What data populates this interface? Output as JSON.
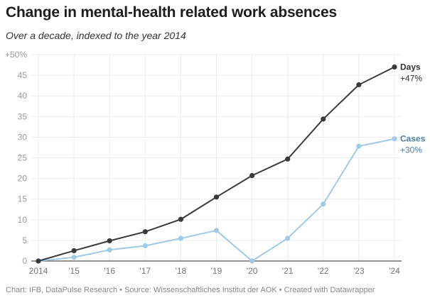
{
  "title": "Change in mental-health related work absences",
  "subtitle": "Over a decade, indexed to the year 2014",
  "footer": "Chart: IFB, DataPulse Research • Source: Wissenschaftliches Institut der AOK • Created with Datawrapper",
  "chart_data": {
    "type": "line",
    "title": "Change in mental-health related work absences",
    "subtitle": "Over a decade, indexed to the year 2014",
    "xlabel": "",
    "ylabel": "",
    "categories": [
      "2014",
      "'15",
      "'16",
      "'17",
      "'18",
      "'19",
      "'20",
      "'21",
      "'22",
      "'23",
      "'24"
    ],
    "yticks": [
      {
        "value": 0,
        "label": "0"
      },
      {
        "value": 5,
        "label": "5"
      },
      {
        "value": 10,
        "label": "10"
      },
      {
        "value": 15,
        "label": "15"
      },
      {
        "value": 20,
        "label": "20"
      },
      {
        "value": 25,
        "label": "25"
      },
      {
        "value": 30,
        "label": "30"
      },
      {
        "value": 35,
        "label": "35"
      },
      {
        "value": 40,
        "label": "40"
      },
      {
        "value": 45,
        "label": "45"
      },
      {
        "value": 50,
        "label": "+50%"
      }
    ],
    "ylim": [
      0,
      50
    ],
    "grid": true,
    "series": [
      {
        "name": "Days",
        "end_label": "+47%",
        "color": "#3a3a3a",
        "label_color": "#333333",
        "values": [
          0,
          2.5,
          4.9,
          7.1,
          10.1,
          15.5,
          20.7,
          24.7,
          34.4,
          42.7,
          47.0
        ]
      },
      {
        "name": "Cases",
        "end_label": "+30%",
        "color": "#9fcbe8",
        "label_color": "#4f7fa6",
        "values": [
          0,
          0.9,
          2.7,
          3.7,
          5.5,
          7.4,
          0,
          5.5,
          13.8,
          27.8,
          29.6
        ]
      }
    ]
  }
}
